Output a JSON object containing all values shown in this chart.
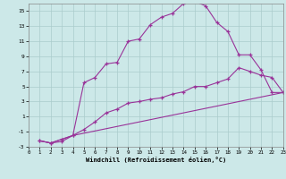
{
  "xlabel": "Windchill (Refroidissement éolien,°C)",
  "xlim": [
    0,
    23
  ],
  "ylim": [
    -3,
    16
  ],
  "bg_color": "#cce8e8",
  "line_color": "#993399",
  "grid_color": "#aacccc",
  "curve1_x": [
    1,
    2,
    3,
    4,
    5,
    6,
    7,
    8,
    9,
    10,
    11,
    12,
    13,
    14,
    15,
    16,
    17,
    18,
    19,
    20,
    21,
    22,
    23
  ],
  "curve1_y": [
    -2.2,
    -2.5,
    -2.3,
    -1.5,
    5.5,
    6.2,
    8.0,
    8.2,
    11.0,
    11.3,
    13.2,
    14.2,
    14.7,
    16.0,
    16.3,
    15.7,
    13.5,
    12.3,
    9.2,
    9.2,
    7.2,
    4.2,
    4.2
  ],
  "curve2_x": [
    1,
    2,
    3,
    4,
    5,
    6,
    7,
    8,
    9,
    10,
    11,
    12,
    13,
    14,
    15,
    16,
    17,
    18,
    19,
    20,
    21,
    22,
    23
  ],
  "curve2_y": [
    -2.2,
    -2.5,
    -2.0,
    -1.5,
    -0.7,
    0.3,
    1.5,
    2.0,
    2.8,
    3.0,
    3.3,
    3.5,
    4.0,
    4.3,
    5.0,
    5.0,
    5.5,
    6.0,
    7.5,
    7.0,
    6.5,
    6.2,
    4.2
  ],
  "curve3_x": [
    1,
    2,
    3,
    4,
    23
  ],
  "curve3_y": [
    -2.2,
    -2.5,
    -2.0,
    -1.5,
    4.2
  ],
  "xticks": [
    0,
    1,
    2,
    3,
    4,
    5,
    6,
    7,
    8,
    9,
    10,
    11,
    12,
    13,
    14,
    15,
    16,
    17,
    18,
    19,
    20,
    21,
    22,
    23
  ],
  "yticks": [
    -3,
    -1,
    1,
    3,
    5,
    7,
    9,
    11,
    13,
    15
  ]
}
